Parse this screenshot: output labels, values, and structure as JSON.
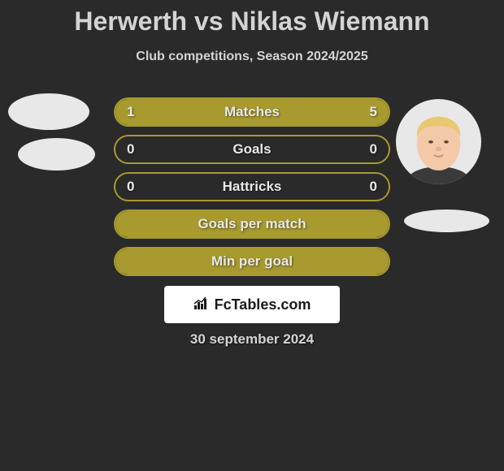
{
  "title": "Herwerth vs Niklas Wiemann",
  "subtitle": "Club competitions, Season 2024/2025",
  "background_color": "#2a2a2a",
  "bar_border_color": "#a89a2e",
  "bar_fill_color": "#a89a2e",
  "text_color": "#d4d4d4",
  "stat_text_color": "#e8e8e8",
  "logo_bg": "#ffffff",
  "logo_text": "FcTables.com",
  "date": "30 september 2024",
  "stats": [
    {
      "label": "Matches",
      "left_value": "1",
      "right_value": "5",
      "left_fill_pct": 16,
      "right_fill_pct": 84,
      "is_full": true
    },
    {
      "label": "Goals",
      "left_value": "0",
      "right_value": "0",
      "left_fill_pct": 0,
      "right_fill_pct": 0,
      "is_full": false
    },
    {
      "label": "Hattricks",
      "left_value": "0",
      "right_value": "0",
      "left_fill_pct": 0,
      "right_fill_pct": 0,
      "is_full": false
    },
    {
      "label": "Goals per match",
      "left_value": "",
      "right_value": "",
      "left_fill_pct": 0,
      "right_fill_pct": 0,
      "is_full": true
    },
    {
      "label": "Min per goal",
      "left_value": "",
      "right_value": "",
      "left_fill_pct": 0,
      "right_fill_pct": 0,
      "is_full": true
    }
  ],
  "avatar_face": {
    "skin": "#f4c9a8",
    "hair": "#e8c870",
    "shirt": "#3a3a3a"
  }
}
